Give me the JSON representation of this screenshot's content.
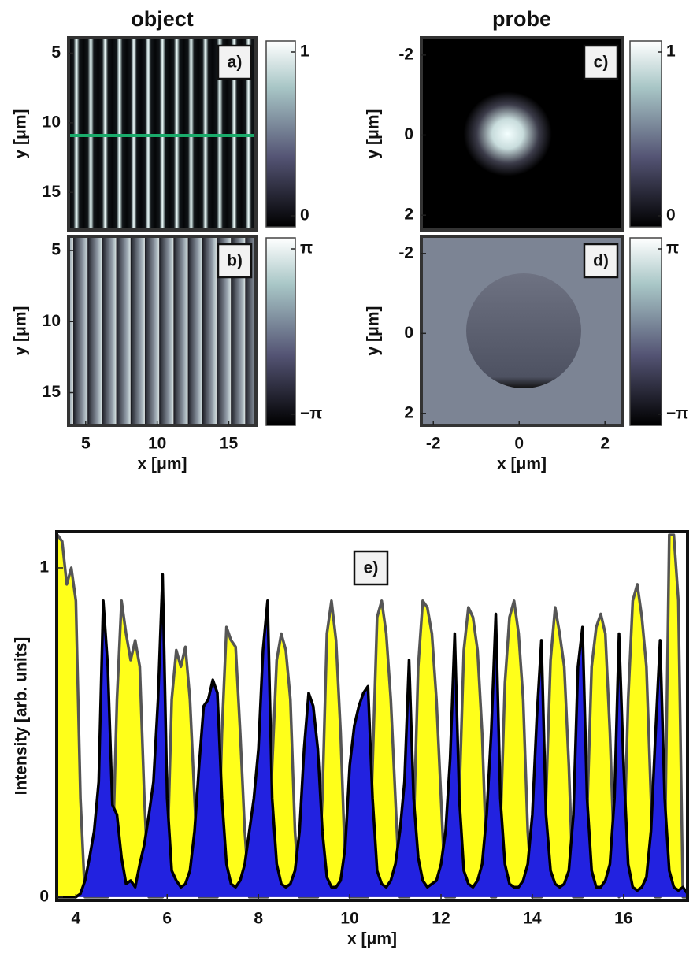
{
  "chart_data": [
    {
      "type": "heatmap",
      "title": "object",
      "panel_label": "a)",
      "ylabel": "y [μm]",
      "xlim": [
        3.8,
        16.9
      ],
      "ylim": [
        3.9,
        17.7
      ],
      "y_reversed": true,
      "yticks": [
        5,
        10,
        15
      ],
      "clim": [
        0,
        1
      ],
      "cticks": [
        0,
        1
      ]
    },
    {
      "type": "heatmap",
      "panel_label": "b)",
      "xlabel": "x [μm]",
      "ylabel": "y [μm]",
      "xlim": [
        3.8,
        16.9
      ],
      "ylim": [
        4.0,
        17.3
      ],
      "y_reversed": true,
      "xticks": [
        5,
        10,
        15
      ],
      "yticks": [
        5,
        10,
        15
      ],
      "clim": [
        -3.1416,
        3.1416
      ],
      "cticks": [
        {
          "value": -3.1416,
          "label": "−π"
        },
        {
          "value": 3.1416,
          "label": "π"
        }
      ]
    },
    {
      "type": "heatmap",
      "title": "probe",
      "panel_label": "c)",
      "ylabel": "y [μm]",
      "xlim": [
        -2.28,
        2.4
      ],
      "ylim": [
        -2.43,
        2.37
      ],
      "y_reversed": true,
      "yticks": [
        -2,
        0,
        2
      ],
      "clim": [
        0,
        1
      ],
      "cticks": [
        0,
        1
      ]
    },
    {
      "type": "heatmap",
      "panel_label": "d)",
      "xlabel": "x [μm]",
      "ylabel": "y [μm]",
      "xlim": [
        -2.28,
        2.4
      ],
      "ylim": [
        -2.43,
        2.3
      ],
      "y_reversed": true,
      "xticks": [
        -2,
        0,
        2
      ],
      "yticks": [
        -2,
        0,
        2
      ],
      "clim": [
        -3.1416,
        3.1416
      ],
      "cticks": [
        {
          "value": -3.1416,
          "label": "−π"
        },
        {
          "value": 3.1416,
          "label": "π"
        }
      ]
    },
    {
      "type": "area",
      "panel_label": "e)",
      "xlabel": "x [μm]",
      "ylabel": "Intensity [arb. units]",
      "xlim": [
        3.58,
        17.4
      ],
      "ylim": [
        -0.01,
        1.11
      ],
      "xticks": [
        4,
        6,
        8,
        10,
        12,
        14,
        16
      ],
      "yticks": [
        0,
        1
      ],
      "x": [
        3.6,
        3.7,
        3.8,
        3.9,
        4.0,
        4.1,
        4.2,
        4.3,
        4.4,
        4.5,
        4.6,
        4.7,
        4.8,
        4.9,
        5.0,
        5.1,
        5.2,
        5.3,
        5.4,
        5.5,
        5.6,
        5.7,
        5.8,
        5.9,
        6.0,
        6.1,
        6.2,
        6.3,
        6.4,
        6.5,
        6.6,
        6.7,
        6.8,
        6.9,
        7.0,
        7.1,
        7.2,
        7.3,
        7.4,
        7.5,
        7.6,
        7.7,
        7.8,
        7.9,
        8.0,
        8.1,
        8.2,
        8.3,
        8.4,
        8.5,
        8.6,
        8.7,
        8.8,
        8.9,
        9.0,
        9.1,
        9.2,
        9.3,
        9.4,
        9.5,
        9.6,
        9.7,
        9.8,
        9.9,
        10.0,
        10.1,
        10.2,
        10.3,
        10.4,
        10.5,
        10.6,
        10.7,
        10.8,
        10.9,
        11.0,
        11.1,
        11.2,
        11.3,
        11.4,
        11.5,
        11.6,
        11.7,
        11.8,
        11.9,
        12.0,
        12.1,
        12.2,
        12.3,
        12.4,
        12.5,
        12.6,
        12.7,
        12.8,
        12.9,
        13.0,
        13.1,
        13.2,
        13.3,
        13.4,
        13.5,
        13.6,
        13.7,
        13.8,
        13.9,
        14.0,
        14.1,
        14.2,
        14.3,
        14.4,
        14.5,
        14.6,
        14.7,
        14.8,
        14.9,
        15.0,
        15.1,
        15.2,
        15.3,
        15.4,
        15.5,
        15.6,
        15.7,
        15.8,
        15.9,
        16.0,
        16.1,
        16.2,
        16.3,
        16.4,
        16.5,
        16.6,
        16.7,
        16.8,
        16.9,
        17.0,
        17.1,
        17.2,
        17.3,
        17.4
      ],
      "series": [
        {
          "color": "#ffff1a",
          "line_color": "#555555",
          "values": [
            1.1,
            1.08,
            0.95,
            1.0,
            0.9,
            0.3,
            0,
            0,
            0,
            0,
            0,
            0,
            0.1,
            0.6,
            0.9,
            0.8,
            0.72,
            0.78,
            0.7,
            0.3,
            0,
            0,
            0,
            0,
            0.1,
            0.6,
            0.75,
            0.7,
            0.76,
            0.6,
            0.3,
            0,
            0,
            0,
            0,
            0,
            0.5,
            0.82,
            0.78,
            0.76,
            0.5,
            0.2,
            0,
            0,
            0,
            0,
            0,
            0.4,
            0.72,
            0.8,
            0.75,
            0.6,
            0.2,
            0,
            0,
            0,
            0,
            0,
            0.3,
            0.8,
            0.9,
            0.78,
            0.5,
            0.1,
            0,
            0,
            0,
            0,
            0,
            0.4,
            0.85,
            0.9,
            0.8,
            0.6,
            0.3,
            0,
            0,
            0,
            0.2,
            0.7,
            0.9,
            0.88,
            0.8,
            0.6,
            0.3,
            0,
            0,
            0,
            0.3,
            0.75,
            0.88,
            0.85,
            0.75,
            0.5,
            0.1,
            0,
            0,
            0.2,
            0.65,
            0.85,
            0.9,
            0.8,
            0.6,
            0.2,
            0,
            0,
            0,
            0.3,
            0.72,
            0.88,
            0.8,
            0.7,
            0.4,
            0,
            0,
            0,
            0.25,
            0.7,
            0.82,
            0.86,
            0.8,
            0.5,
            0.1,
            0,
            0.1,
            0.6,
            0.9,
            0.95,
            0.85,
            0.7,
            0.3,
            0,
            0,
            0.1,
            1.1,
            1.1,
            0.9,
            0,
            0
          ]
        },
        {
          "color": "#2222e0",
          "line_color": "#000000",
          "values": [
            0,
            0,
            0,
            0,
            0,
            0.01,
            0.05,
            0.12,
            0.2,
            0.35,
            0.9,
            0.7,
            0.28,
            0.25,
            0.12,
            0.04,
            0.05,
            0.03,
            0.1,
            0.16,
            0.25,
            0.35,
            0.6,
            0.98,
            0.3,
            0.08,
            0.05,
            0.03,
            0.04,
            0.08,
            0.2,
            0.4,
            0.58,
            0.6,
            0.66,
            0.62,
            0.3,
            0.1,
            0.04,
            0.03,
            0.05,
            0.1,
            0.2,
            0.3,
            0.45,
            0.75,
            0.9,
            0.3,
            0.1,
            0.04,
            0.03,
            0.04,
            0.08,
            0.2,
            0.45,
            0.62,
            0.58,
            0.45,
            0.2,
            0.06,
            0.03,
            0.03,
            0.05,
            0.15,
            0.4,
            0.52,
            0.58,
            0.62,
            0.64,
            0.3,
            0.08,
            0.04,
            0.03,
            0.05,
            0.1,
            0.2,
            0.35,
            0.72,
            0.3,
            0.12,
            0.05,
            0.03,
            0.04,
            0.05,
            0.1,
            0.2,
            0.42,
            0.8,
            0.3,
            0.08,
            0.04,
            0.03,
            0.05,
            0.1,
            0.25,
            0.5,
            0.86,
            0.3,
            0.1,
            0.04,
            0.03,
            0.03,
            0.05,
            0.1,
            0.25,
            0.55,
            0.78,
            0.25,
            0.08,
            0.04,
            0.03,
            0.04,
            0.08,
            0.25,
            0.7,
            0.82,
            0.3,
            0.08,
            0.03,
            0.03,
            0.05,
            0.1,
            0.3,
            0.8,
            0.4,
            0.1,
            0.03,
            0.02,
            0.03,
            0.06,
            0.2,
            0.5,
            0.78,
            0.3,
            0.08,
            0.03,
            0.02,
            0.03,
            0.01
          ]
        }
      ]
    }
  ]
}
